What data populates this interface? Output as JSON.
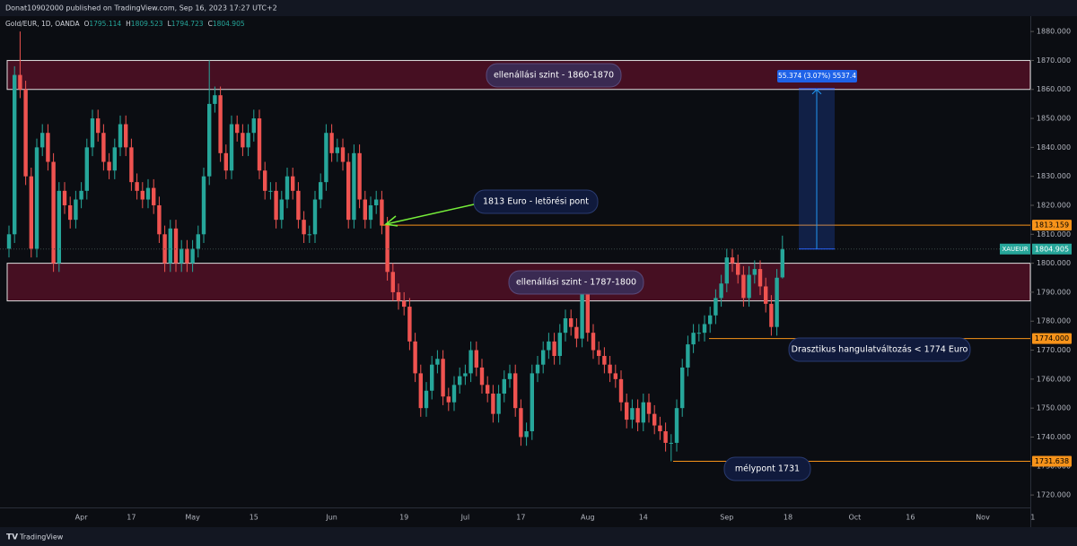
{
  "header": {
    "text": "Donat10902000 published on TradingView.com, Sep 16, 2023 17:27 UTC+2"
  },
  "chart_data": {
    "type": "candlestick",
    "symbol": "Gold/EUR, 1D, OANDA",
    "ohlc_legend": [
      {
        "prefix": "O",
        "value": 1795.114
      },
      {
        "prefix": "H",
        "value": 1809.523
      },
      {
        "prefix": "L",
        "value": 1794.723
      },
      {
        "prefix": "C",
        "value": 1804.905
      }
    ],
    "categories": [
      null,
      null,
      null,
      null,
      null,
      null,
      null,
      null,
      null,
      null,
      null,
      null,
      null,
      "Apr",
      null,
      null,
      null,
      null,
      null,
      null,
      null,
      null,
      "17",
      null,
      null,
      null,
      null,
      null,
      null,
      null,
      null,
      null,
      null,
      "May",
      null,
      null,
      null,
      null,
      null,
      null,
      null,
      null,
      null,
      null,
      "15",
      null,
      null,
      null,
      null,
      null,
      null,
      null,
      null,
      null,
      null,
      null,
      null,
      null,
      "Jun",
      null,
      null,
      null,
      null,
      null,
      null,
      null,
      null,
      null,
      null,
      null,
      null,
      "19",
      null,
      null,
      null,
      null,
      null,
      null,
      null,
      null,
      null,
      null,
      "Jul",
      null,
      null,
      null,
      null,
      null,
      null,
      null,
      null,
      null,
      "17",
      null,
      null,
      null,
      null,
      null,
      null,
      null,
      null,
      null,
      null,
      null,
      "Aug",
      null,
      null,
      null,
      null,
      null,
      null,
      null,
      null,
      null,
      "14",
      null,
      null,
      null,
      null,
      null,
      null,
      null,
      null,
      null,
      null,
      null,
      null,
      null,
      null,
      "Sep",
      null,
      null,
      null,
      null,
      null,
      null,
      null,
      null,
      null,
      null,
      "18",
      null,
      null,
      null,
      null,
      null,
      null,
      null,
      null,
      null,
      null,
      null,
      "Oct",
      null,
      null,
      null,
      null,
      null,
      null,
      null,
      null,
      null,
      "16",
      null,
      null,
      null,
      null,
      null,
      null,
      null,
      null,
      null,
      null,
      null,
      null,
      "Nov",
      null,
      null,
      null,
      null,
      null,
      null,
      null,
      null,
      "1"
    ],
    "open": [
      1805,
      1810,
      1865,
      1860,
      1830,
      1805,
      1840,
      1845,
      1835,
      1800,
      1825,
      1820,
      1815,
      1822,
      1825,
      1840,
      1850,
      1845,
      1835,
      1832,
      1840,
      1848,
      1840,
      1828,
      1825,
      1822,
      1826,
      1820,
      1810,
      1800,
      1812,
      1800,
      1805,
      1800,
      1805,
      1810,
      1830,
      1855,
      1858,
      1838,
      1832,
      1848,
      1845,
      1840,
      1845,
      1850,
      1832,
      1825,
      1825,
      1815,
      1822,
      1830,
      1825,
      1815,
      1810,
      1810,
      1822,
      1828,
      1845,
      1838,
      1840,
      1835,
      1815,
      1838,
      1822,
      1815,
      1820,
      1822,
      1813,
      1797,
      1790,
      1787,
      1785,
      1773,
      1762,
      1750,
      1756,
      1765,
      1767,
      1754,
      1752,
      1758,
      1761,
      1762,
      1770,
      1764,
      1758,
      1755,
      1748,
      1755,
      1760,
      1762,
      1750,
      1740,
      1742,
      1762,
      1765,
      1770,
      1773,
      1768,
      1776,
      1781,
      1778,
      1774,
      1790,
      1776,
      1770,
      1768,
      1765,
      1762,
      1760,
      1752,
      1746,
      1750,
      1745,
      1752,
      1748,
      1744,
      1742,
      1738,
      1738,
      1750,
      1764,
      1772,
      1776,
      1776,
      1779,
      1782,
      1788,
      1793,
      1802,
      1800,
      1796,
      1788,
      1796,
      1798,
      1792,
      1786,
      1778,
      1795.114,
      null,
      null,
      null,
      null,
      null,
      null,
      null,
      null,
      null,
      null,
      null,
      null,
      null,
      null,
      null,
      null,
      null,
      null,
      null,
      null,
      null,
      null,
      null,
      null,
      null,
      null,
      null,
      null,
      null,
      null,
      null,
      null,
      null,
      null,
      null,
      null,
      null,
      null,
      null,
      null,
      null,
      null,
      null,
      null,
      null
    ],
    "high": [
      1813,
      1868,
      1880,
      1863,
      1833,
      1843,
      1848,
      1848,
      1838,
      1828,
      1828,
      1823,
      1825,
      1828,
      1843,
      1853,
      1853,
      1848,
      1838,
      1843,
      1851,
      1851,
      1843,
      1831,
      1828,
      1829,
      1829,
      1823,
      1813,
      1815,
      1815,
      1808,
      1808,
      1808,
      1813,
      1833,
      1870,
      1861,
      1861,
      1841,
      1851,
      1851,
      1848,
      1848,
      1853,
      1853,
      1835,
      1828,
      1828,
      1825,
      1833,
      1833,
      1828,
      1818,
      1813,
      1825,
      1831,
      1848,
      1848,
      1843,
      1843,
      1838,
      1841,
      1841,
      1825,
      1823,
      1825,
      1825,
      1816,
      1800,
      1793,
      1790,
      1788,
      1776,
      1765,
      1759,
      1768,
      1770,
      1770,
      1757,
      1761,
      1764,
      1765,
      1773,
      1773,
      1767,
      1761,
      1758,
      1758,
      1763,
      1765,
      1765,
      1753,
      1745,
      1765,
      1768,
      1773,
      1776,
      1776,
      1779,
      1784,
      1784,
      1781,
      1793,
      1793,
      1779,
      1773,
      1771,
      1768,
      1765,
      1763,
      1755,
      1753,
      1753,
      1755,
      1755,
      1751,
      1747,
      1745,
      1741,
      1753,
      1767,
      1775,
      1779,
      1779,
      1782,
      1785,
      1791,
      1796,
      1805,
      1805,
      1803,
      1799,
      1799,
      1801,
      1801,
      1795,
      1789,
      1798,
      1809.523,
      null,
      null,
      null,
      null,
      null,
      null,
      null,
      null,
      null,
      null,
      null,
      null,
      null,
      null,
      null,
      null,
      null,
      null,
      null,
      null,
      null,
      null,
      null,
      null,
      null,
      null,
      null,
      null,
      null,
      null,
      null,
      null,
      null,
      null,
      null,
      null,
      null,
      null,
      null,
      null,
      null,
      null,
      null,
      null,
      null
    ],
    "low": [
      1802,
      1807,
      1857,
      1827,
      1802,
      1802,
      1837,
      1832,
      1797,
      1797,
      1817,
      1812,
      1812,
      1819,
      1822,
      1837,
      1842,
      1832,
      1829,
      1829,
      1837,
      1837,
      1825,
      1822,
      1819,
      1819,
      1817,
      1807,
      1797,
      1797,
      1797,
      1797,
      1797,
      1797,
      1802,
      1807,
      1827,
      1852,
      1835,
      1829,
      1829,
      1842,
      1837,
      1837,
      1842,
      1829,
      1822,
      1822,
      1812,
      1812,
      1819,
      1822,
      1812,
      1807,
      1807,
      1807,
      1819,
      1825,
      1835,
      1835,
      1832,
      1812,
      1812,
      1819,
      1812,
      1812,
      1817,
      1810,
      1794,
      1787,
      1784,
      1782,
      1770,
      1759,
      1747,
      1747,
      1753,
      1762,
      1751,
      1749,
      1749,
      1755,
      1758,
      1759,
      1761,
      1755,
      1752,
      1745,
      1745,
      1752,
      1757,
      1747,
      1737,
      1737,
      1739,
      1759,
      1762,
      1767,
      1765,
      1765,
      1773,
      1775,
      1771,
      1771,
      1773,
      1767,
      1765,
      1762,
      1759,
      1757,
      1749,
      1743,
      1743,
      1742,
      1742,
      1745,
      1741,
      1739,
      1735,
      1731.638,
      1735,
      1747,
      1761,
      1769,
      1773,
      1773,
      1776,
      1779,
      1785,
      1790,
      1797,
      1793,
      1785,
      1785,
      1793,
      1789,
      1783,
      1775,
      1775,
      1794.723,
      null,
      null,
      null,
      null,
      null,
      null,
      null,
      null,
      null,
      null,
      null,
      null,
      null,
      null,
      null,
      null,
      null,
      null,
      null,
      null,
      null,
      null,
      null,
      null,
      null,
      null,
      null,
      null,
      null,
      null,
      null,
      null,
      null,
      null,
      null,
      null,
      null,
      null,
      null,
      null,
      null,
      null,
      null,
      null,
      null
    ],
    "close": [
      1810,
      1865,
      1860,
      1830,
      1805,
      1840,
      1845,
      1835,
      1800,
      1825,
      1820,
      1815,
      1822,
      1825,
      1840,
      1850,
      1845,
      1835,
      1832,
      1840,
      1848,
      1840,
      1828,
      1825,
      1822,
      1826,
      1820,
      1810,
      1800,
      1812,
      1800,
      1805,
      1800,
      1805,
      1810,
      1830,
      1855,
      1858,
      1838,
      1832,
      1848,
      1845,
      1840,
      1845,
      1850,
      1832,
      1825,
      1825,
      1815,
      1822,
      1830,
      1825,
      1815,
      1810,
      1810,
      1822,
      1828,
      1845,
      1838,
      1840,
      1835,
      1815,
      1838,
      1822,
      1815,
      1820,
      1822,
      1813,
      1797,
      1790,
      1787,
      1785,
      1773,
      1762,
      1750,
      1756,
      1765,
      1767,
      1754,
      1752,
      1758,
      1761,
      1762,
      1770,
      1764,
      1758,
      1755,
      1748,
      1755,
      1760,
      1762,
      1750,
      1740,
      1742,
      1762,
      1765,
      1770,
      1773,
      1768,
      1776,
      1781,
      1778,
      1774,
      1790,
      1776,
      1770,
      1768,
      1765,
      1762,
      1760,
      1752,
      1746,
      1750,
      1745,
      1752,
      1748,
      1744,
      1742,
      1738,
      1738,
      1750,
      1764,
      1772,
      1776,
      1776,
      1779,
      1782,
      1788,
      1793,
      1802,
      1800,
      1796,
      1788,
      1796,
      1798,
      1792,
      1786,
      1778,
      1795,
      1804.905,
      null,
      null,
      null,
      null,
      null,
      null,
      null,
      null,
      null,
      null,
      null,
      null,
      null,
      null,
      null,
      null,
      null,
      null,
      null,
      null,
      null,
      null,
      null,
      null,
      null,
      null,
      null,
      null,
      null,
      null,
      null,
      null,
      null,
      null,
      null,
      null,
      null,
      null,
      null,
      null,
      null,
      null,
      null,
      null,
      null
    ],
    "up_color": "#26a69a",
    "down_color": "#ef5350",
    "ylim": [
      1715.7,
      1885.3
    ],
    "yticks": [
      {
        "value": 1880,
        "label": "1880.000"
      },
      {
        "value": 1870,
        "label": "1870.000"
      },
      {
        "value": 1860,
        "label": "1860.000"
      },
      {
        "value": 1850,
        "label": "1850.000"
      },
      {
        "value": 1840,
        "label": "1840.000"
      },
      {
        "value": 1830,
        "label": "1830.000"
      },
      {
        "value": 1820,
        "label": "1820.000"
      },
      {
        "value": 1810,
        "label": "1810.000"
      },
      {
        "value": 1800,
        "label": "1800.000"
      },
      {
        "value": 1790,
        "label": "1790.000"
      },
      {
        "value": 1780,
        "label": "1780.000"
      },
      {
        "value": 1770,
        "label": "1770.000"
      },
      {
        "value": 1760,
        "label": "1760.000"
      },
      {
        "value": 1750,
        "label": "1750.000"
      },
      {
        "value": 1740,
        "label": "1740.000"
      },
      {
        "value": 1730,
        "label": "1730.000"
      },
      {
        "value": 1720,
        "label": "1720.000"
      }
    ],
    "zones": [
      {
        "from": 1860,
        "to": 1870,
        "label": "ellenállási szint - 1860-1870"
      },
      {
        "from": 1787,
        "to": 1800,
        "label": "ellenállási szint - 1787-1800"
      }
    ],
    "levels": [
      {
        "value": 1813.159,
        "label": "1813.159"
      },
      {
        "value": 1774,
        "label": "1774.000"
      },
      {
        "value": 1731.638,
        "label": "1731.638"
      }
    ],
    "last_price": {
      "symbol": "XAUEUR",
      "value": 1804.905
    },
    "measure": {
      "from": 1804.905,
      "to": 1860.279,
      "label": "55.374 (3.07%) 5537.4"
    },
    "annotations": [
      "1813 Euro - letörési pont",
      "Drasztikus hangulatváltozás < 1774 Euro",
      "mélypont 1731"
    ]
  },
  "footer": {
    "brand": "TradingView"
  }
}
